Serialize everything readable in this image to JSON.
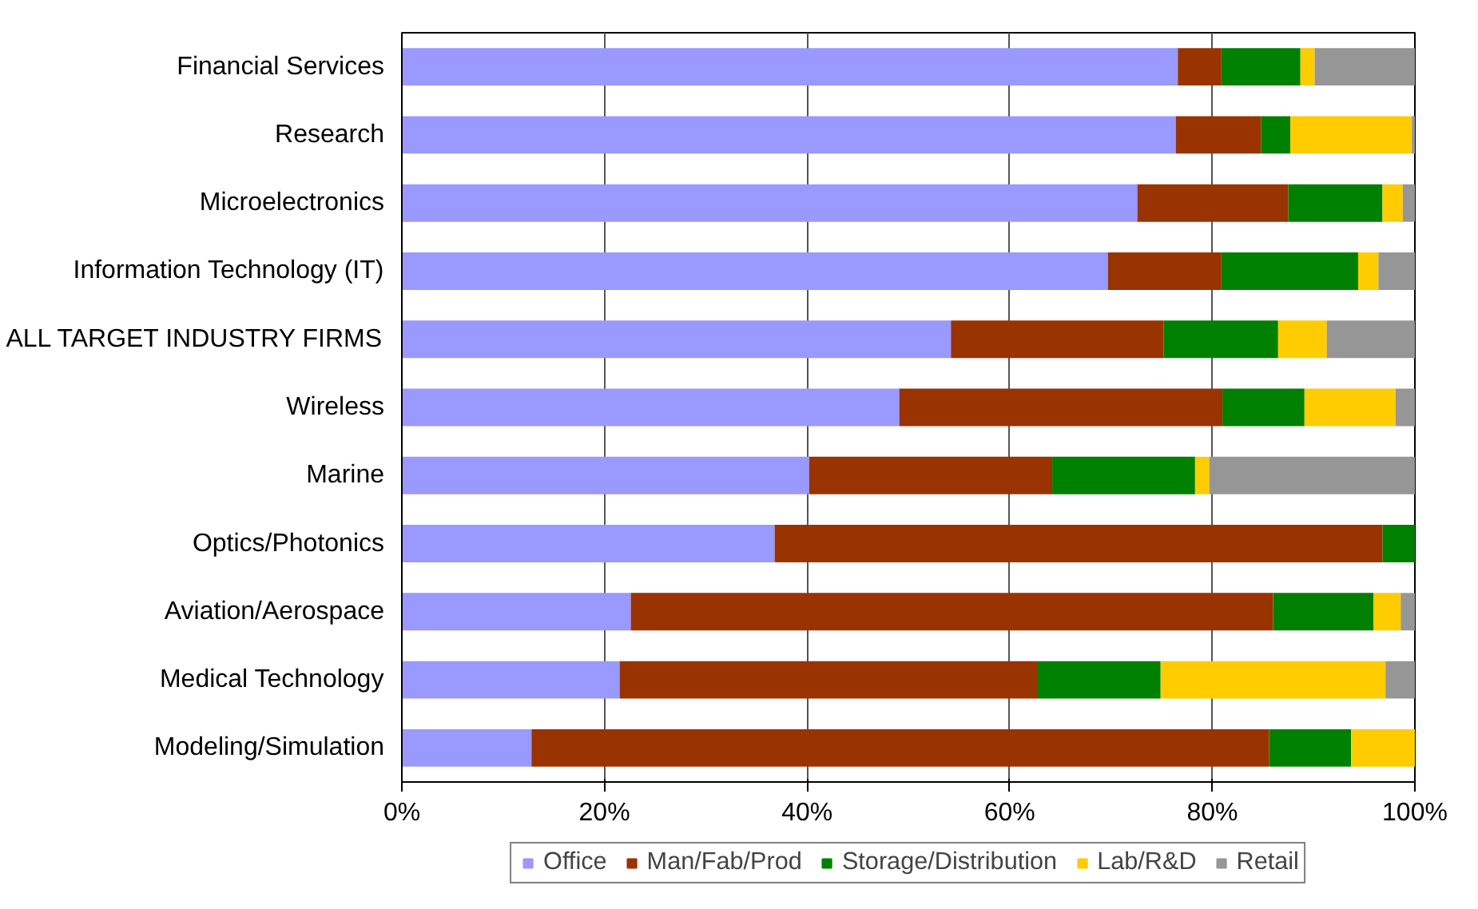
{
  "chart_data": {
    "type": "bar",
    "orientation": "horizontal",
    "stacked": true,
    "categories": [
      "Financial Services",
      "Research",
      "Microelectronics",
      "Information Technology (IT)",
      "ALL TARGET INDUSTRY FIRMS",
      "Wireless",
      "Marine",
      "Optics/Photonics",
      "Aviation/Aerospace",
      "Medical Technology",
      "Modeling/Simulation"
    ],
    "series": [
      {
        "name": "Office",
        "color": "#9999ff",
        "values": [
          76.6,
          76.4,
          72.6,
          69.7,
          54.2,
          49.1,
          40.2,
          36.8,
          22.6,
          21.5,
          12.8
        ]
      },
      {
        "name": "Man/Fab/Prod",
        "color": "#993300",
        "values": [
          4.3,
          8.4,
          14.9,
          11.2,
          21.0,
          31.9,
          24.0,
          60.0,
          63.4,
          41.2,
          72.8
        ]
      },
      {
        "name": "Storage/Distribution",
        "color": "#008000",
        "values": [
          7.8,
          2.9,
          9.3,
          13.5,
          11.3,
          8.1,
          14.1,
          3.2,
          9.9,
          12.2,
          8.1
        ]
      },
      {
        "name": "Lab/R&D",
        "color": "#ffcc00",
        "values": [
          1.4,
          12.0,
          2.0,
          2.0,
          4.8,
          9.0,
          1.4,
          0,
          2.7,
          22.2,
          6.3
        ]
      },
      {
        "name": "Retail",
        "color": "#969696",
        "values": [
          9.9,
          0.3,
          1.2,
          3.6,
          8.7,
          1.9,
          20.3,
          0,
          1.4,
          2.9,
          0
        ]
      }
    ],
    "xlim": [
      0,
      100
    ],
    "xticks": [
      {
        "value": 0,
        "label": "0%"
      },
      {
        "value": 20,
        "label": "20%"
      },
      {
        "value": 40,
        "label": "40%"
      },
      {
        "value": 60,
        "label": "60%"
      },
      {
        "value": 80,
        "label": "80%"
      },
      {
        "value": 100,
        "label": "100%"
      }
    ],
    "grid": "x",
    "legend": "bottom"
  }
}
